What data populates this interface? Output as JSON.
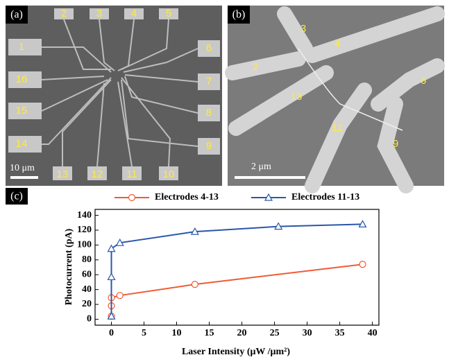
{
  "panels": {
    "a": {
      "label": "(a)",
      "electrodes": [
        "1",
        "2",
        "3",
        "4",
        "5",
        "6",
        "7",
        "8",
        "9",
        "10",
        "11",
        "12",
        "13",
        "14",
        "15",
        "16"
      ],
      "scale": "10 μm"
    },
    "b": {
      "label": "(b)",
      "electrodes": [
        "2",
        "3",
        "4",
        "6",
        "9",
        "11",
        "13"
      ],
      "scale": "2 μm"
    }
  },
  "chart_data": {
    "type": "line",
    "panel_label": "(c)",
    "x_label": "Laser Intensity (μW /μm²)",
    "y_label": "Photocurrent (pA)",
    "xlim": [
      -2.5,
      41
    ],
    "ylim": [
      -8,
      148
    ],
    "xticks": [
      0,
      5,
      10,
      15,
      20,
      25,
      30,
      35,
      40
    ],
    "yticks": [
      0,
      20,
      40,
      60,
      80,
      100,
      120,
      140
    ],
    "series": [
      {
        "name": "Electrodes 4-13",
        "color": "#f05a32",
        "marker": "circle",
        "x": [
          0,
          0,
          0,
          1.3,
          12.8,
          38.5
        ],
        "values": [
          4,
          18,
          29,
          32,
          47,
          74
        ]
      },
      {
        "name": "Electrodes 11-13",
        "color": "#2856a8",
        "marker": "triangle",
        "x": [
          0,
          0,
          0,
          1.3,
          12.8,
          25.6,
          38.5
        ],
        "values": [
          4,
          57,
          95,
          103,
          118,
          125,
          128
        ]
      }
    ]
  }
}
